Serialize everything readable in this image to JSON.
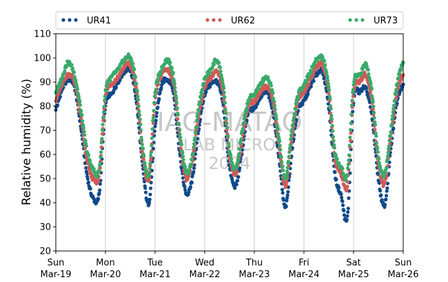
{
  "chart_data": {
    "type": "scatter",
    "ylabel": "Relative humidity (%)",
    "ylim": [
      20,
      110
    ],
    "yticks": [
      20,
      30,
      40,
      50,
      60,
      70,
      80,
      90,
      100,
      110
    ],
    "xlim": [
      "2024-03-19",
      "2024-03-26"
    ],
    "xticks": [
      {
        "day": "Sun",
        "date": "Mar-19"
      },
      {
        "day": "Mon",
        "date": "Mar-20"
      },
      {
        "day": "Tue",
        "date": "Mar-21"
      },
      {
        "day": "Wed",
        "date": "Mar-22"
      },
      {
        "day": "Thu",
        "date": "Mar-23"
      },
      {
        "day": "Fri",
        "date": "Mar-24"
      },
      {
        "day": "Sat",
        "date": "Mar-25"
      },
      {
        "day": "Sun",
        "date": "Mar-26"
      }
    ],
    "grid": "vertical at day boundaries",
    "legend_placement": "top",
    "watermark": [
      "IAG-MATAO",
      "LAB MICRO",
      "2024"
    ],
    "series": [
      {
        "name": "UR41",
        "color": "#0e4a8a",
        "x": [
          "2024-03-19 00:00",
          "2024-03-19 03:00",
          "2024-03-19 06:00",
          "2024-03-19 09:00",
          "2024-03-19 12:00",
          "2024-03-19 15:00",
          "2024-03-19 18:00",
          "2024-03-19 21:00",
          "2024-03-20 00:00",
          "2024-03-20 03:00",
          "2024-03-20 06:00",
          "2024-03-20 09:00",
          "2024-03-20 12:00",
          "2024-03-20 15:00",
          "2024-03-20 18:00",
          "2024-03-20 21:00",
          "2024-03-21 00:00",
          "2024-03-21 03:00",
          "2024-03-21 06:00",
          "2024-03-21 09:00",
          "2024-03-21 12:00",
          "2024-03-21 15:00",
          "2024-03-21 18:00",
          "2024-03-21 21:00",
          "2024-03-22 00:00",
          "2024-03-22 03:00",
          "2024-03-22 06:00",
          "2024-03-22 09:00",
          "2024-03-22 12:00",
          "2024-03-22 15:00",
          "2024-03-22 18:00",
          "2024-03-22 21:00",
          "2024-03-23 00:00",
          "2024-03-23 03:00",
          "2024-03-23 06:00",
          "2024-03-23 09:00",
          "2024-03-23 12:00",
          "2024-03-23 15:00",
          "2024-03-23 18:00",
          "2024-03-23 21:00",
          "2024-03-24 00:00",
          "2024-03-24 03:00",
          "2024-03-24 06:00",
          "2024-03-24 09:00",
          "2024-03-24 12:00",
          "2024-03-24 15:00",
          "2024-03-24 18:00",
          "2024-03-24 21:00",
          "2024-03-25 00:00",
          "2024-03-25 03:00",
          "2024-03-25 06:00",
          "2024-03-25 09:00",
          "2024-03-25 12:00",
          "2024-03-25 15:00",
          "2024-03-25 18:00",
          "2024-03-25 21:00",
          "2024-03-26 00:00"
        ],
        "y": [
          79,
          87,
          91,
          88,
          72,
          52,
          42,
          44,
          80,
          85,
          90,
          94,
          95,
          82,
          55,
          40,
          71,
          88,
          91,
          85,
          60,
          44,
          50,
          70,
          85,
          89,
          90,
          80,
          55,
          47,
          61,
          77,
          79,
          84,
          86,
          78,
          58,
          38,
          60,
          78,
          82,
          88,
          93,
          94,
          80,
          52,
          43,
          34,
          82,
          86,
          87,
          75,
          50,
          39,
          62,
          82,
          89
        ]
      },
      {
        "name": "UR62",
        "color": "#d05a57",
        "x": [
          "2024-03-19 00:00",
          "2024-03-19 03:00",
          "2024-03-19 06:00",
          "2024-03-19 09:00",
          "2024-03-19 12:00",
          "2024-03-19 15:00",
          "2024-03-19 18:00",
          "2024-03-19 21:00",
          "2024-03-20 00:00",
          "2024-03-20 03:00",
          "2024-03-20 06:00",
          "2024-03-20 09:00",
          "2024-03-20 12:00",
          "2024-03-20 15:00",
          "2024-03-20 18:00",
          "2024-03-20 21:00",
          "2024-03-21 00:00",
          "2024-03-21 03:00",
          "2024-03-21 06:00",
          "2024-03-21 09:00",
          "2024-03-21 12:00",
          "2024-03-21 15:00",
          "2024-03-21 18:00",
          "2024-03-21 21:00",
          "2024-03-22 00:00",
          "2024-03-22 03:00",
          "2024-03-22 06:00",
          "2024-03-22 09:00",
          "2024-03-22 12:00",
          "2024-03-22 15:00",
          "2024-03-22 18:00",
          "2024-03-22 21:00",
          "2024-03-23 00:00",
          "2024-03-23 03:00",
          "2024-03-23 06:00",
          "2024-03-23 09:00",
          "2024-03-23 12:00",
          "2024-03-23 15:00",
          "2024-03-23 18:00",
          "2024-03-23 21:00",
          "2024-03-24 00:00",
          "2024-03-24 03:00",
          "2024-03-24 06:00",
          "2024-03-24 09:00",
          "2024-03-24 12:00",
          "2024-03-24 15:00",
          "2024-03-24 18:00",
          "2024-03-24 21:00",
          "2024-03-25 00:00",
          "2024-03-25 03:00",
          "2024-03-25 06:00",
          "2024-03-25 09:00",
          "2024-03-25 12:00",
          "2024-03-25 15:00",
          "2024-03-25 18:00",
          "2024-03-25 21:00",
          "2024-03-26 00:00"
        ],
        "y": [
          83,
          89,
          93,
          90,
          76,
          58,
          50,
          52,
          84,
          89,
          92,
          96,
          97,
          86,
          60,
          50,
          82,
          93,
          95,
          89,
          66,
          50,
          57,
          76,
          88,
          92,
          94,
          85,
          60,
          52,
          66,
          80,
          82,
          86,
          88,
          82,
          63,
          47,
          66,
          82,
          86,
          91,
          96,
          97,
          85,
          58,
          52,
          47,
          86,
          90,
          93,
          81,
          56,
          48,
          67,
          86,
          93
        ]
      },
      {
        "name": "UR73",
        "color": "#3aaa6a",
        "x": [
          "2024-03-19 00:00",
          "2024-03-19 03:00",
          "2024-03-19 06:00",
          "2024-03-19 09:00",
          "2024-03-19 12:00",
          "2024-03-19 15:00",
          "2024-03-19 18:00",
          "2024-03-19 21:00",
          "2024-03-20 00:00",
          "2024-03-20 03:00",
          "2024-03-20 06:00",
          "2024-03-20 09:00",
          "2024-03-20 12:00",
          "2024-03-20 15:00",
          "2024-03-20 18:00",
          "2024-03-20 21:00",
          "2024-03-21 00:00",
          "2024-03-21 03:00",
          "2024-03-21 06:00",
          "2024-03-21 09:00",
          "2024-03-21 12:00",
          "2024-03-21 15:00",
          "2024-03-21 18:00",
          "2024-03-21 21:00",
          "2024-03-22 00:00",
          "2024-03-22 03:00",
          "2024-03-22 06:00",
          "2024-03-22 09:00",
          "2024-03-22 12:00",
          "2024-03-22 15:00",
          "2024-03-22 18:00",
          "2024-03-22 21:00",
          "2024-03-23 00:00",
          "2024-03-23 03:00",
          "2024-03-23 06:00",
          "2024-03-23 09:00",
          "2024-03-23 12:00",
          "2024-03-23 15:00",
          "2024-03-23 18:00",
          "2024-03-23 21:00",
          "2024-03-24 00:00",
          "2024-03-24 03:00",
          "2024-03-24 06:00",
          "2024-03-24 09:00",
          "2024-03-24 12:00",
          "2024-03-24 15:00",
          "2024-03-24 18:00",
          "2024-03-24 21:00",
          "2024-03-25 00:00",
          "2024-03-25 03:00",
          "2024-03-25 06:00",
          "2024-03-25 09:00",
          "2024-03-25 12:00",
          "2024-03-25 15:00",
          "2024-03-25 18:00",
          "2024-03-25 21:00",
          "2024-03-26 00:00"
        ],
        "y": [
          86,
          92,
          98,
          93,
          79,
          62,
          54,
          54,
          86,
          92,
          95,
          99,
          100,
          89,
          63,
          52,
          85,
          95,
          99,
          92,
          69,
          53,
          59,
          79,
          91,
          95,
          99,
          88,
          62,
          54,
          69,
          82,
          85,
          89,
          92,
          85,
          66,
          50,
          69,
          84,
          89,
          94,
          99,
          100,
          88,
          61,
          55,
          52,
          89,
          93,
          97,
          85,
          59,
          52,
          70,
          89,
          98
        ]
      }
    ]
  }
}
